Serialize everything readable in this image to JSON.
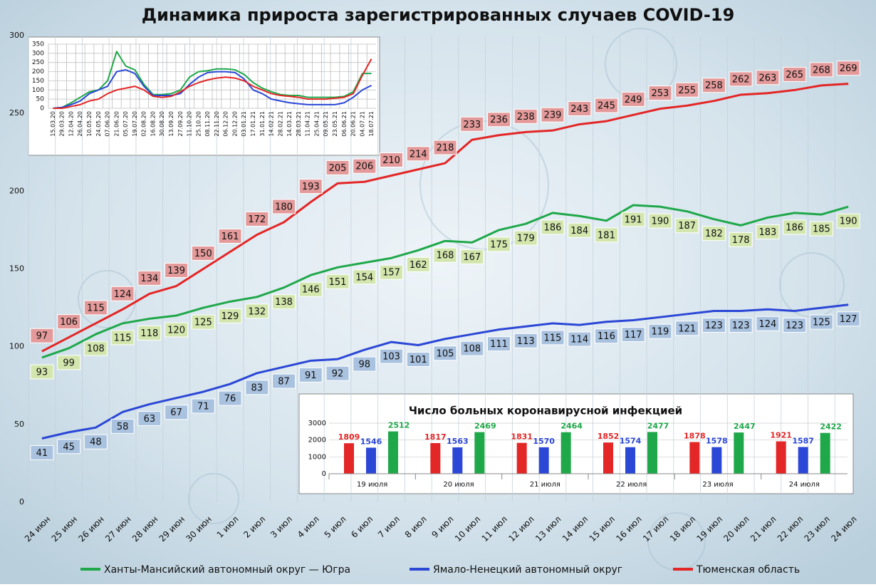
{
  "chart_data": [
    {
      "type": "line",
      "title": "Динамика прироста зарегистрированных случаев COVID-19",
      "categories": [
        "24 июн",
        "25 июн",
        "26 июн",
        "27 июн",
        "28 июн",
        "29 июн",
        "30 июн",
        "1 июл",
        "2 июл",
        "3 июл",
        "4 июл",
        "5 июл",
        "6 июл",
        "7 июл",
        "8 июл",
        "9 июл",
        "10 июл",
        "11 июл",
        "12 июл",
        "13 июл",
        "14 июл",
        "15 июл",
        "16 июл",
        "17 июл",
        "18 июл",
        "19 июл",
        "20 июл",
        "21 июл",
        "22 июл",
        "23 июл",
        "24 июл"
      ],
      "series": [
        {
          "name": "Ханты-Мансийский автономный округ — Югра",
          "color": "#1fa84a",
          "values": [
            93,
            99,
            108,
            115,
            118,
            120,
            125,
            129,
            132,
            138,
            146,
            151,
            154,
            157,
            162,
            168,
            167,
            175,
            179,
            186,
            184,
            181,
            191,
            190,
            187,
            182,
            178,
            183,
            186,
            185,
            190
          ]
        },
        {
          "name": "Ямало-Ненецкий автономный округ",
          "color": "#2b47d6",
          "values": [
            41,
            45,
            48,
            58,
            63,
            67,
            71,
            76,
            83,
            87,
            91,
            92,
            98,
            103,
            101,
            105,
            108,
            111,
            113,
            115,
            114,
            116,
            117,
            119,
            121,
            123,
            123,
            124,
            123,
            125,
            127
          ]
        },
        {
          "name": "Тюменская область",
          "color": "#e32626",
          "values": [
            97,
            106,
            115,
            124,
            134,
            139,
            150,
            161,
            172,
            180,
            193,
            205,
            206,
            210,
            214,
            218,
            233,
            236,
            238,
            239,
            243,
            245,
            249,
            253,
            255,
            258,
            262,
            263,
            265,
            268,
            269
          ]
        }
      ],
      "ylim": [
        0,
        300
      ],
      "yticks": [
        0,
        50,
        100,
        150,
        200,
        250,
        300
      ],
      "vertical_grid": true,
      "legend": "bottom"
    },
    {
      "type": "line",
      "categories": [
        "15.03.20",
        "29.03.20",
        "12.04.20",
        "26.04.20",
        "10.05.20",
        "24.05.20",
        "07.06.20",
        "21.06.20",
        "05.07.20",
        "19.07.20",
        "02.08.20",
        "16.08.20",
        "30.08.20",
        "13.09.20",
        "27.09.20",
        "11.10.20",
        "25.10.20",
        "08.11.20",
        "22.11.20",
        "06.12.20",
        "20.12.20",
        "03.01.21",
        "17.01.21",
        "31.01.21",
        "14.02.21",
        "28.02.21",
        "14.03.21",
        "28.03.21",
        "11.04.21",
        "25.04.21",
        "09.05.21",
        "23.05.21",
        "06.06.21",
        "20.06.21",
        "04.07.21",
        "18.07.21"
      ],
      "series": [
        {
          "color": "#1fa84a",
          "values": [
            0,
            5,
            30,
            60,
            90,
            100,
            150,
            310,
            230,
            210,
            130,
            75,
            75,
            80,
            100,
            170,
            200,
            205,
            215,
            215,
            210,
            185,
            140,
            110,
            90,
            75,
            70,
            70,
            60,
            60,
            60,
            60,
            65,
            90,
            190,
            190
          ]
        },
        {
          "color": "#2b47d6",
          "values": [
            0,
            5,
            20,
            40,
            80,
            100,
            120,
            200,
            210,
            190,
            120,
            70,
            70,
            70,
            80,
            130,
            170,
            195,
            200,
            200,
            195,
            160,
            100,
            80,
            50,
            40,
            30,
            25,
            20,
            20,
            20,
            20,
            30,
            60,
            100,
            125
          ]
        },
        {
          "color": "#e32626",
          "values": [
            0,
            0,
            10,
            20,
            40,
            50,
            80,
            100,
            110,
            120,
            100,
            65,
            60,
            65,
            90,
            120,
            140,
            155,
            165,
            170,
            165,
            150,
            120,
            100,
            80,
            70,
            65,
            60,
            50,
            50,
            50,
            55,
            60,
            80,
            180,
            270
          ]
        }
      ],
      "ylim": [
        0,
        350
      ],
      "yticks": [
        0,
        50,
        100,
        150,
        200,
        250,
        300,
        350
      ],
      "grid": true
    },
    {
      "type": "bar",
      "title": "Число больных  коронавирусной  инфекцией",
      "categories": [
        "19 июля",
        "20 июля",
        "21 июля",
        "22 июля",
        "23 июля",
        "24 июля"
      ],
      "series": [
        {
          "color": "#e32626",
          "values": [
            1809,
            1817,
            1831,
            1852,
            1878,
            1921
          ]
        },
        {
          "color": "#2b47d6",
          "values": [
            1546,
            1563,
            1570,
            1574,
            1578,
            1587
          ]
        },
        {
          "color": "#1fa84a",
          "values": [
            2512,
            2469,
            2464,
            2477,
            2447,
            2422
          ]
        }
      ],
      "ylim": [
        0,
        3000
      ],
      "yticks": [
        0,
        1000,
        2000,
        3000
      ]
    }
  ]
}
